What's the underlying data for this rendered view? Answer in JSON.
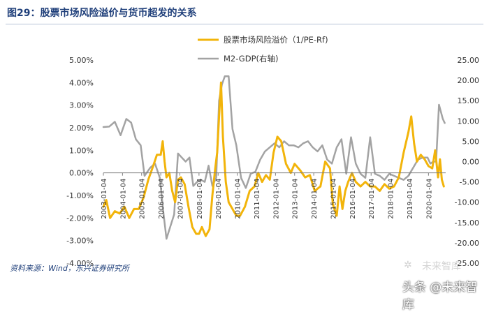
{
  "title": "图29：股票市场风险溢价与货币超发的关系",
  "source": "资料来源：Wind，东兴证券研究所",
  "watermark": {
    "top": "未来智库",
    "bottom": "头条 @未来智库",
    "logo": "✲"
  },
  "colors": {
    "premium": "#f2b40a",
    "m2gdp": "#a3a3a3",
    "axis": "#7f7f7f",
    "title": "#1f3f7a"
  },
  "chart_data": {
    "type": "line",
    "categories": [
      "2003-01-04",
      "2004-01-04",
      "2005-01-04",
      "2006-01-04",
      "2007-01-04",
      "2008-01-04",
      "2009-01-04",
      "2010-01-04",
      "2011-01-04",
      "2012-01-04",
      "2013-01-04",
      "2014-01-04",
      "2015-01-04",
      "2016-01-04",
      "2017-01-04",
      "2018-01-04",
      "2019-01-04",
      "2020-01-04"
    ],
    "x_range": [
      2003.0,
      2020.9
    ],
    "y_left": {
      "ticks": [
        "5.00%",
        "4.00%",
        "3.00%",
        "2.00%",
        "1.00%",
        "0.00%",
        "-1.00%",
        "-2.00%",
        "-3.00%",
        "-4.00%"
      ],
      "range": [
        -4,
        5
      ]
    },
    "y_right": {
      "ticks": [
        "25.00",
        "20.00",
        "15.00",
        "10.00",
        "5.00",
        "0.00",
        "-5.00",
        "-10.00",
        "-15.00",
        "-20.00",
        "-25.00"
      ],
      "range": [
        -25,
        25
      ]
    },
    "legend_position": "top-center",
    "series": [
      {
        "name": "股票市场风险溢价（1/PE-Rf)",
        "axis": "left",
        "x": [
          2003.0,
          2003.15,
          2003.35,
          2003.6,
          2003.85,
          2004.1,
          2004.35,
          2004.6,
          2004.85,
          2005.1,
          2005.35,
          2005.6,
          2005.8,
          2006.0,
          2006.1,
          2006.2,
          2006.3,
          2006.45,
          2006.6,
          2006.75,
          2006.9,
          2007.05,
          2007.25,
          2007.45,
          2007.65,
          2007.85,
          2008.0,
          2008.15,
          2008.35,
          2008.55,
          2008.7,
          2008.85,
          2008.95,
          2009.05,
          2009.15,
          2009.25,
          2009.4,
          2009.55,
          2009.75,
          2009.95,
          2010.15,
          2010.4,
          2010.65,
          2010.9,
          2011.1,
          2011.3,
          2011.5,
          2011.7,
          2011.9,
          2012.1,
          2012.3,
          2012.55,
          2012.8,
          2013.0,
          2013.3,
          2013.55,
          2013.8,
          2014.05,
          2014.35,
          2014.6,
          2014.85,
          2015.0,
          2015.2,
          2015.35,
          2015.5,
          2015.65,
          2015.8,
          2016.0,
          2016.2,
          2016.45,
          2016.7,
          2016.95,
          2017.2,
          2017.45,
          2017.7,
          2017.95,
          2018.2,
          2018.45,
          2018.7,
          2018.95,
          2019.1,
          2019.25,
          2019.4,
          2019.6,
          2019.8,
          2020.0,
          2020.2,
          2020.35,
          2020.5,
          2020.6,
          2020.7,
          2020.8
        ],
        "y": [
          -1.5,
          -1.2,
          -2.0,
          -1.7,
          -1.8,
          -1.5,
          -2.0,
          -1.6,
          -1.6,
          -1.1,
          -0.3,
          0.3,
          0.8,
          0.8,
          1.4,
          0.5,
          -0.2,
          0.0,
          -0.8,
          -1.3,
          -0.3,
          -0.2,
          -0.5,
          -1.5,
          -2.4,
          -2.7,
          -2.7,
          -2.4,
          -2.8,
          -2.5,
          -1.0,
          0.2,
          0.9,
          2.5,
          4.0,
          1.6,
          -0.4,
          -1.3,
          -1.6,
          -1.9,
          -1.9,
          -1.5,
          -0.8,
          -0.6,
          0.0,
          -0.4,
          -0.1,
          -0.3,
          0.9,
          1.6,
          1.4,
          0.4,
          0.0,
          0.4,
          0.1,
          -0.2,
          -0.1,
          -0.8,
          -0.6,
          0.5,
          0.2,
          -1.4,
          -1.9,
          -0.6,
          -1.6,
          -0.8,
          -0.4,
          0.0,
          -0.4,
          -0.6,
          -0.4,
          -0.6,
          -0.6,
          -0.8,
          -0.5,
          -0.7,
          -0.6,
          -0.2,
          0.9,
          1.8,
          2.5,
          1.3,
          0.5,
          0.8,
          0.6,
          0.3,
          0.2,
          1.0,
          -0.2,
          0.6,
          -0.3,
          -0.6
        ]
      },
      {
        "name": "M2-GDP(右轴)",
        "axis": "right",
        "x": [
          2003.0,
          2003.3,
          2003.6,
          2003.9,
          2004.2,
          2004.45,
          2004.7,
          2004.95,
          2005.15,
          2005.45,
          2005.7,
          2005.95,
          2006.15,
          2006.3,
          2006.5,
          2006.7,
          2006.9,
          2007.1,
          2007.3,
          2007.5,
          2007.7,
          2007.9,
          2008.1,
          2008.3,
          2008.5,
          2008.7,
          2008.9,
          2009.05,
          2009.2,
          2009.35,
          2009.55,
          2009.75,
          2009.95,
          2010.2,
          2010.45,
          2010.7,
          2010.95,
          2011.2,
          2011.45,
          2011.7,
          2011.95,
          2012.2,
          2012.45,
          2012.7,
          2012.95,
          2013.2,
          2013.45,
          2013.7,
          2013.95,
          2014.2,
          2014.45,
          2014.7,
          2014.95,
          2015.2,
          2015.45,
          2015.7,
          2015.95,
          2016.2,
          2016.45,
          2016.7,
          2016.95,
          2017.2,
          2017.45,
          2017.7,
          2017.95,
          2018.2,
          2018.45,
          2018.7,
          2018.95,
          2019.2,
          2019.45,
          2019.7,
          2019.95,
          2020.1,
          2020.25,
          2020.4,
          2020.55,
          2020.75,
          2020.85
        ],
        "y": [
          8.5,
          8.6,
          9.8,
          6.5,
          10.5,
          9.6,
          5.5,
          4.0,
          -3.5,
          -1.5,
          -0.5,
          -4.0,
          -13.0,
          -19.0,
          -16.0,
          -13.0,
          2.0,
          1.0,
          0.0,
          1.0,
          -6.0,
          -5.0,
          -4.5,
          -5.0,
          -1.0,
          -6.0,
          -4.0,
          15.0,
          19.0,
          21.0,
          21.0,
          8.0,
          4.0,
          -4.0,
          -6.5,
          -3.0,
          -2.5,
          0.5,
          2.5,
          3.5,
          4.5,
          3.5,
          5.0,
          4.0,
          4.0,
          3.5,
          4.5,
          5.0,
          3.5,
          2.5,
          4.0,
          0.5,
          -0.5,
          3.5,
          5.5,
          -3.0,
          6.0,
          -0.5,
          -3.0,
          -4.0,
          6.0,
          -3.0,
          -3.5,
          -4.5,
          -3.0,
          -3.5,
          -4.0,
          -4.5,
          -3.5,
          -1.5,
          0.5,
          1.0,
          1.0,
          -0.5,
          0.0,
          0.0,
          14.0,
          10.5,
          9.5
        ]
      }
    ]
  }
}
